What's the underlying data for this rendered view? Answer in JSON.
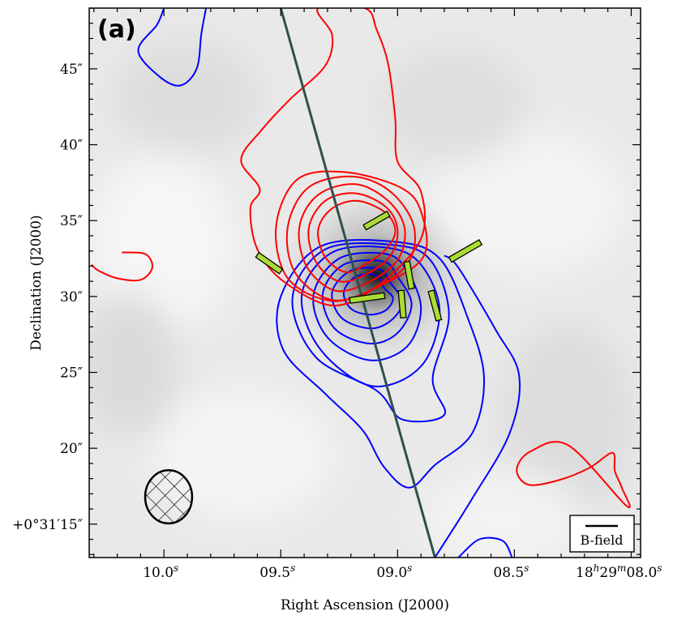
{
  "chart_data": {
    "type": "contour-map",
    "panel_label": "(a)",
    "xlabel": "Right Ascension (J2000)",
    "ylabel": "Declination (J2000)",
    "x_ticks": [
      {
        "value": 10.0,
        "label": "10.0",
        "sup": "s"
      },
      {
        "value": 9.5,
        "label": "09.5",
        "sup": "s"
      },
      {
        "value": 9.0,
        "label": "09.0",
        "sup": "s"
      },
      {
        "value": 8.5,
        "label": "08.5",
        "sup": "s"
      },
      {
        "value": 8.0,
        "label": "18",
        "label_parts": [
          "18",
          "h",
          "29",
          "m",
          "08.0",
          "s"
        ]
      }
    ],
    "y_ticks": [
      {
        "value": 15,
        "label": "+0°31′15″"
      },
      {
        "value": 20,
        "label": "20″"
      },
      {
        "value": 25,
        "label": "25″"
      },
      {
        "value": 30,
        "label": "30″"
      },
      {
        "value": 35,
        "label": "35″"
      },
      {
        "value": 40,
        "label": "40″"
      },
      {
        "value": 45,
        "label": "45″"
      }
    ],
    "xlim": [
      10.32,
      7.96
    ],
    "ylim": [
      12.8,
      49.0
    ],
    "colors": {
      "redshifted": "#ff0000",
      "blueshifted": "#0000ff",
      "vectors": "#aadd33",
      "outflow_axis": "#2f4f4f"
    },
    "outflow_axis": [
      [
        9.5,
        49.0
      ],
      [
        8.84,
        12.8
      ]
    ],
    "red_contours": [
      [
        [
          9.13,
          32.2
        ],
        [
          9.05,
          33.1
        ],
        [
          9.01,
          34.3
        ],
        [
          9.05,
          35.5
        ],
        [
          9.17,
          36.3
        ],
        [
          9.28,
          35.8
        ],
        [
          9.34,
          34.4
        ],
        [
          9.31,
          32.6
        ],
        [
          9.22,
          31.6
        ]
      ],
      [
        [
          9.13,
          31.5
        ],
        [
          9.03,
          32.7
        ],
        [
          9.0,
          34.4
        ],
        [
          9.05,
          35.9
        ],
        [
          9.18,
          36.8
        ],
        [
          9.31,
          36.3
        ],
        [
          9.38,
          34.5
        ],
        [
          9.35,
          32.3
        ],
        [
          9.25,
          31.0
        ]
      ],
      [
        [
          9.13,
          30.9
        ],
        [
          9.0,
          32.4
        ],
        [
          8.97,
          34.5
        ],
        [
          9.04,
          36.3
        ],
        [
          9.18,
          37.4
        ],
        [
          9.34,
          36.7
        ],
        [
          9.42,
          34.6
        ],
        [
          9.39,
          32.0
        ],
        [
          9.27,
          30.4
        ]
      ],
      [
        [
          9.13,
          30.3
        ],
        [
          8.96,
          32.1
        ],
        [
          8.93,
          34.6
        ],
        [
          9.03,
          36.9
        ],
        [
          9.19,
          37.9
        ],
        [
          9.38,
          37.2
        ],
        [
          9.47,
          34.6
        ],
        [
          9.44,
          31.6
        ],
        [
          9.29,
          29.8
        ]
      ],
      [
        [
          9.09,
          30.6
        ],
        [
          8.89,
          32.6
        ],
        [
          8.9,
          35.6
        ],
        [
          8.99,
          37.2
        ],
        [
          9.23,
          38.2
        ],
        [
          9.43,
          37.7
        ],
        [
          9.52,
          34.6
        ],
        [
          9.47,
          31.2
        ],
        [
          9.28,
          29.7
        ]
      ],
      [
        [
          9.07,
          30.9
        ],
        [
          8.9,
          33.8
        ],
        [
          8.9,
          36.9
        ],
        [
          9.0,
          38.9
        ],
        [
          9.01,
          41.7
        ],
        [
          9.04,
          45.3
        ],
        [
          9.09,
          47.6
        ],
        [
          9.14,
          49.0
        ],
        [
          9.34,
          49.0
        ],
        [
          9.28,
          47.2
        ],
        [
          9.31,
          45.2
        ],
        [
          9.46,
          43.0
        ],
        [
          9.58,
          41.0
        ],
        [
          9.67,
          39.0
        ],
        [
          9.59,
          37.1
        ],
        [
          9.63,
          35.8
        ],
        [
          9.6,
          33.1
        ],
        [
          9.48,
          30.9
        ],
        [
          9.27,
          29.4
        ]
      ],
      [
        [
          10.18,
          32.9
        ],
        [
          10.08,
          32.8
        ],
        [
          10.05,
          31.9
        ],
        [
          10.1,
          31.1
        ],
        [
          10.2,
          31.2
        ],
        [
          10.28,
          31.7
        ],
        [
          10.31,
          32.1
        ]
      ],
      [
        [
          8.27,
          20.2
        ],
        [
          8.43,
          19.8
        ],
        [
          8.49,
          18.6
        ],
        [
          8.44,
          17.6
        ],
        [
          8.31,
          17.9
        ],
        [
          8.18,
          18.7
        ],
        [
          8.08,
          19.7
        ],
        [
          8.07,
          18.5
        ],
        [
          8.04,
          17.4
        ],
        [
          8.02,
          16.2
        ]
      ]
    ],
    "blue_contours": [
      [
        [
          9.06,
          30.6
        ],
        [
          9.02,
          29.9
        ],
        [
          9.05,
          29.1
        ],
        [
          9.12,
          28.8
        ],
        [
          9.2,
          29.2
        ],
        [
          9.23,
          30.3
        ],
        [
          9.18,
          31.3
        ],
        [
          9.09,
          31.4
        ]
      ],
      [
        [
          9.03,
          30.9
        ],
        [
          8.98,
          29.6
        ],
        [
          9.03,
          28.4
        ],
        [
          9.12,
          27.9
        ],
        [
          9.24,
          28.6
        ],
        [
          9.28,
          30.3
        ],
        [
          9.2,
          31.7
        ],
        [
          9.08,
          31.8
        ]
      ],
      [
        [
          9.0,
          31.3
        ],
        [
          8.94,
          29.5
        ],
        [
          9.0,
          27.6
        ],
        [
          9.12,
          26.9
        ],
        [
          9.27,
          27.9
        ],
        [
          9.32,
          30.2
        ],
        [
          9.23,
          32.1
        ],
        [
          9.06,
          32.3
        ]
      ],
      [
        [
          8.96,
          31.7
        ],
        [
          8.9,
          29.2
        ],
        [
          8.96,
          26.7
        ],
        [
          9.12,
          25.8
        ],
        [
          9.3,
          27.3
        ],
        [
          9.36,
          30.1
        ],
        [
          9.25,
          32.5
        ],
        [
          9.05,
          32.8
        ]
      ],
      [
        [
          8.9,
          32.1
        ],
        [
          8.82,
          29.0
        ],
        [
          8.9,
          25.4
        ],
        [
          9.11,
          24.1
        ],
        [
          9.33,
          26.5
        ],
        [
          9.41,
          30.1
        ],
        [
          9.28,
          32.9
        ],
        [
          9.04,
          33.2
        ]
      ],
      [
        [
          8.86,
          32.4
        ],
        [
          8.78,
          28.8
        ],
        [
          8.85,
          24.6
        ],
        [
          8.8,
          22.2
        ],
        [
          8.98,
          21.9
        ],
        [
          9.09,
          23.8
        ],
        [
          9.35,
          26.0
        ],
        [
          9.45,
          29.9
        ],
        [
          9.31,
          33.1
        ],
        [
          9.02,
          33.4
        ]
      ],
      [
        [
          8.82,
          32.5
        ],
        [
          8.7,
          28.6
        ],
        [
          8.63,
          24.7
        ],
        [
          8.68,
          21.0
        ],
        [
          8.84,
          18.9
        ],
        [
          8.95,
          17.4
        ],
        [
          9.06,
          18.8
        ],
        [
          9.15,
          21.2
        ],
        [
          9.31,
          23.6
        ],
        [
          9.49,
          26.5
        ],
        [
          9.5,
          30.0
        ],
        [
          9.33,
          33.3
        ],
        [
          9.01,
          33.6
        ]
      ],
      [
        [
          8.84,
          12.8
        ],
        [
          8.68,
          16.7
        ],
        [
          8.52,
          21.0
        ],
        [
          8.48,
          24.8
        ],
        [
          8.58,
          27.8
        ],
        [
          8.74,
          31.9
        ],
        [
          8.8,
          32.7
        ]
      ],
      [
        [
          8.74,
          12.8
        ],
        [
          8.65,
          14.0
        ],
        [
          8.55,
          13.9
        ],
        [
          8.51,
          12.8
        ]
      ],
      [
        [
          10.0,
          49.0
        ],
        [
          10.03,
          47.9
        ],
        [
          10.11,
          46.2
        ],
        [
          10.02,
          44.5
        ],
        [
          9.93,
          43.9
        ],
        [
          9.86,
          45.0
        ],
        [
          9.84,
          47.3
        ],
        [
          9.82,
          49.0
        ]
      ]
    ],
    "polarization_vectors": [
      {
        "x": 9.13,
        "y": 29.9,
        "pa": 82,
        "len": 2.3
      },
      {
        "x": 9.09,
        "y": 35.0,
        "pa": 60,
        "len": 1.8
      },
      {
        "x": 8.95,
        "y": 31.4,
        "pa": -10,
        "len": 1.8
      },
      {
        "x": 8.98,
        "y": 29.5,
        "pa": -5,
        "len": 1.8
      },
      {
        "x": 8.84,
        "y": 29.4,
        "pa": -15,
        "len": 2.0
      },
      {
        "x": 8.71,
        "y": 33.0,
        "pa": 60,
        "len": 2.3
      },
      {
        "x": 9.55,
        "y": 32.2,
        "pa": -55,
        "len": 1.9
      }
    ],
    "grayscale_peak": {
      "x": 9.09,
      "y": 31.4
    },
    "beam": {
      "x": 9.98,
      "y": 16.8,
      "major": 3.5,
      "minor": 3.0
    },
    "legend": {
      "label": "B-field",
      "position": "bottom-right"
    }
  }
}
